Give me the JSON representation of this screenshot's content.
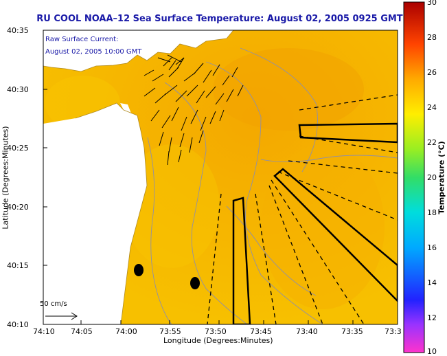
{
  "title": "RU COOL  NOAA–12  Sea Surface Temperature:  August 02, 2005 0925 GMT",
  "legend": {
    "line1": "Raw Surface Current:",
    "line2": "August 02, 2005 10:00 GMT",
    "scale_label": "50 cm/s"
  },
  "axes": {
    "xlabel": "Longitude (Degrees:Minutes)",
    "ylabel": "Latitude (Degrees:Minutes)",
    "xticks": [
      "74:10",
      "74:05",
      "74:00",
      "73:55",
      "73:50",
      "73:45",
      "73:40",
      "73:35",
      "73:3"
    ],
    "yticks": [
      "40:35",
      "40:30",
      "40:25",
      "40:20",
      "40:15",
      "40:10"
    ]
  },
  "colorbar": {
    "label": "Temperature (°C)",
    "ticks": [
      "30",
      "28",
      "26",
      "24",
      "22",
      "20",
      "18",
      "16",
      "14",
      "12",
      "10"
    ],
    "range": [
      10,
      30
    ]
  },
  "colors": {
    "title": "#1a1aa8",
    "sst_main": "#f5b800",
    "land": "#ffffff"
  }
}
